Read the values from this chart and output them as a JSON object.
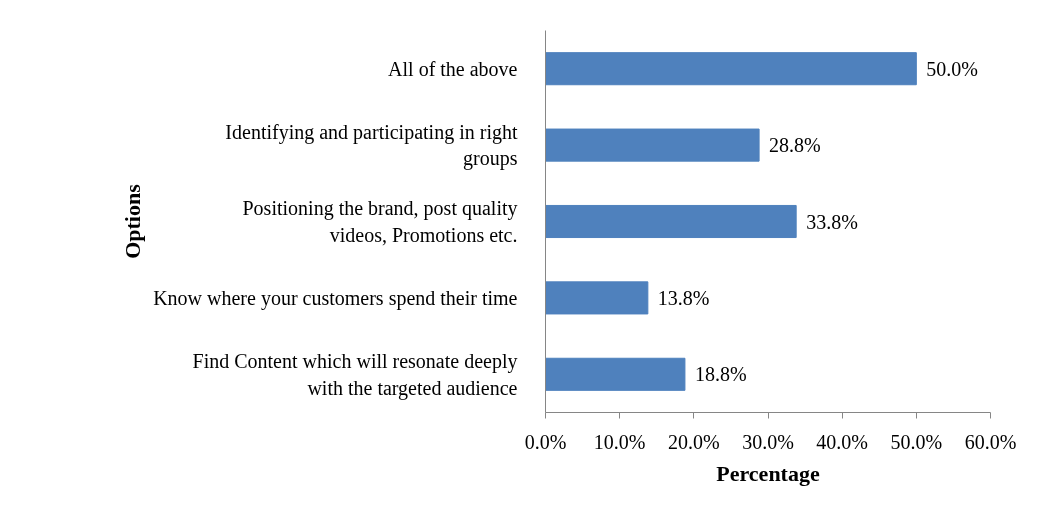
{
  "chart_data": {
    "type": "bar",
    "orientation": "horizontal",
    "xlabel": "Percentage",
    "ylabel": "Options",
    "categories": [
      "All of the above",
      "Identifying and participating in right groups",
      "Positioning the brand, post quality videos, Promotions etc.",
      "Know where your customers spend their time",
      "Find Content which will resonate deeply with the targeted audience"
    ],
    "values": [
      50.0,
      28.8,
      33.8,
      13.8,
      18.8
    ],
    "value_labels": [
      "50.0%",
      "28.8%",
      "33.8%",
      "13.8%",
      "18.8%"
    ],
    "color": "#4f81bd",
    "xlim": [
      0,
      60
    ],
    "xticks": [
      {
        "value": 0,
        "label": "0.0%"
      },
      {
        "value": 10,
        "label": "10.0%"
      },
      {
        "value": 20,
        "label": "20.0%"
      },
      {
        "value": 30,
        "label": "30.0%"
      },
      {
        "value": 40,
        "label": "40.0%"
      },
      {
        "value": 50,
        "label": "50.0%"
      },
      {
        "value": 60,
        "label": "60.0%"
      }
    ],
    "grid": false
  }
}
